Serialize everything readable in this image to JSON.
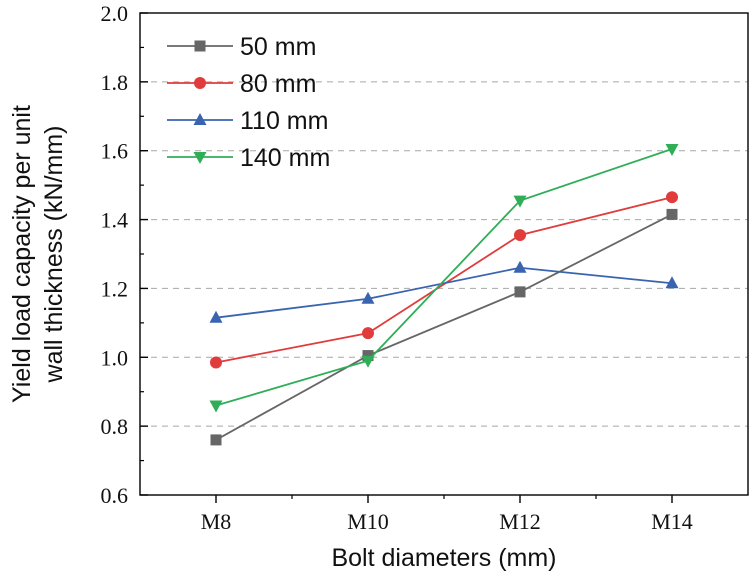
{
  "chart_data": {
    "type": "line",
    "categories": [
      "M8",
      "M10",
      "M12",
      "M14"
    ],
    "series": [
      {
        "name": "50 mm",
        "values": [
          0.76,
          1.005,
          1.19,
          1.415
        ],
        "color": "#666666",
        "marker": "square"
      },
      {
        "name": "80 mm",
        "values": [
          0.985,
          1.07,
          1.355,
          1.465
        ],
        "color": "#e03c3c",
        "marker": "circle"
      },
      {
        "name": "110 mm",
        "values": [
          1.115,
          1.17,
          1.26,
          1.215
        ],
        "color": "#3a64b0",
        "marker": "triangle-up"
      },
      {
        "name": "140 mm",
        "values": [
          0.86,
          0.99,
          1.455,
          1.605
        ],
        "color": "#2fae57",
        "marker": "triangle-down"
      }
    ],
    "title": "",
    "xlabel": "Bolt diameters (mm)",
    "ylabel_lines": [
      "Yield load capacity per unit",
      "wall thickness (kN/mm)"
    ],
    "ylim": [
      0.6,
      2.0
    ],
    "yticks": [
      "0.6",
      "0.8",
      "1.0",
      "1.2",
      "1.4",
      "1.6",
      "1.8",
      "2.0"
    ],
    "grid": "horizontal-dashed",
    "legend_position": "top-left"
  }
}
